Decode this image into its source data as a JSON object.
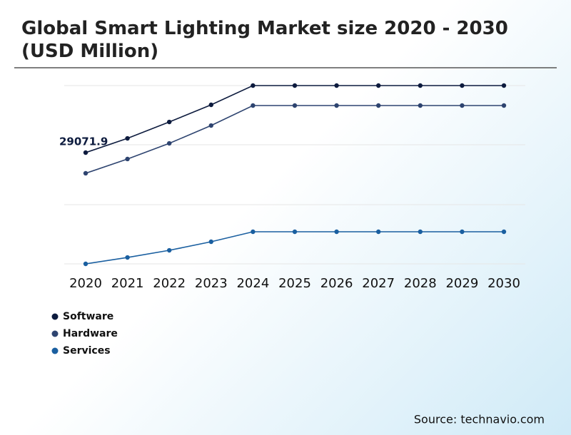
{
  "chart_data": {
    "type": "line",
    "title": "Global Smart Lighting Market size 2020 - 2030 (USD Million)",
    "source": "Source: technavio.com",
    "categories": [
      "2020",
      "2021",
      "2022",
      "2023",
      "2024",
      "2025",
      "2026",
      "2027",
      "2028",
      "2029",
      "2030"
    ],
    "series": [
      {
        "name": "Software",
        "color": "#0d1b3e",
        "values": [
          29071.9,
          32750,
          36980,
          41400,
          46370,
          46370,
          46370,
          46370,
          46370,
          46370,
          46370
        ]
      },
      {
        "name": "Hardware",
        "color": "#2e4470",
        "values": [
          23740,
          27420,
          31460,
          36060,
          41220,
          41220,
          41220,
          41220,
          41220,
          41220,
          41220
        ]
      },
      {
        "name": "Services",
        "color": "#1a5fa0",
        "values": [
          370,
          2020,
          3860,
          6070,
          8650,
          8650,
          8650,
          8650,
          8650,
          8650,
          8650
        ]
      }
    ],
    "ylim": [
      0,
      46370
    ]
  }
}
